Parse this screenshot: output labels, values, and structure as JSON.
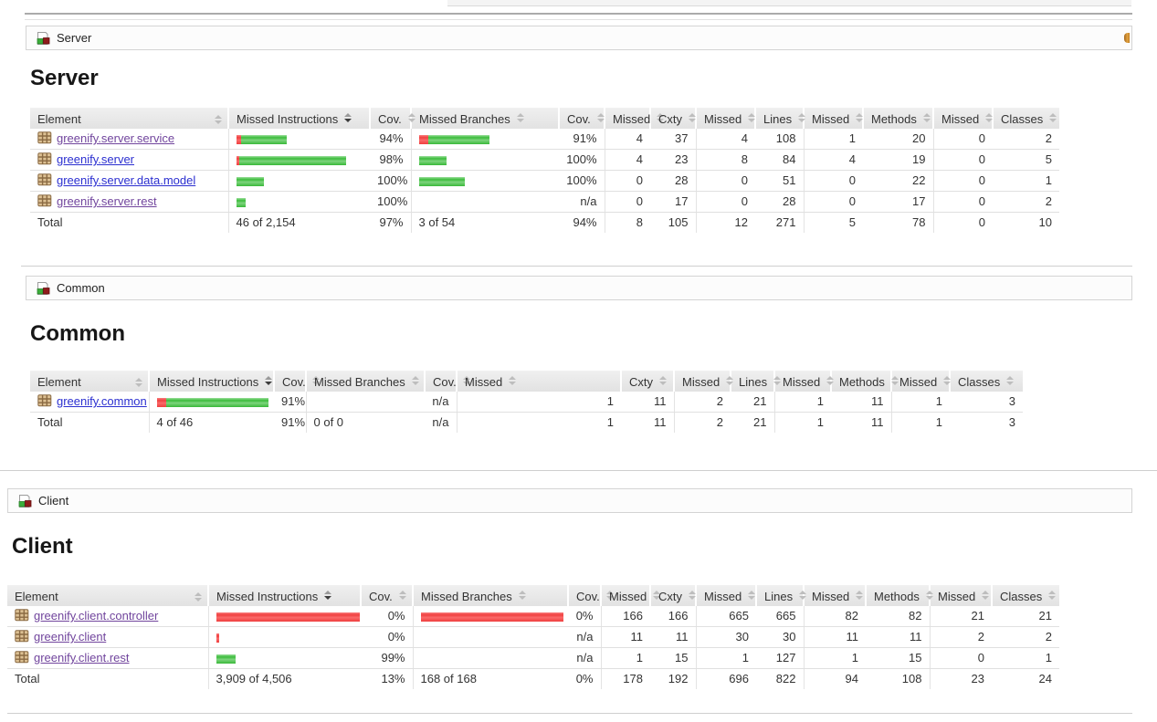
{
  "colors": {
    "link": "#2b2fd0",
    "link_visited": "#71459d",
    "bar_green": "#44c044",
    "bar_red": "#f04545",
    "header_bg": "#e8e8e8",
    "crumb_border": "#d4d4d4",
    "sessions_icon_orange": "#d8963a"
  },
  "columns": [
    {
      "label": "Element",
      "sorted": false
    },
    {
      "label": "Missed Instructions",
      "sorted": true
    },
    {
      "label": "Cov.",
      "sorted": false
    },
    {
      "label": "Missed Branches",
      "sorted": false
    },
    {
      "label": "Cov.",
      "sorted": false
    },
    {
      "label": "Missed",
      "sorted": false
    },
    {
      "label": "Cxty",
      "sorted": false
    },
    {
      "label": "Missed",
      "sorted": false
    },
    {
      "label": "Lines",
      "sorted": false
    },
    {
      "label": "Missed",
      "sorted": false
    },
    {
      "label": "Methods",
      "sorted": false
    },
    {
      "label": "Missed",
      "sorted": false
    },
    {
      "label": "Classes",
      "sorted": false
    }
  ],
  "sections": [
    {
      "breadcrumb": "Server",
      "title": "Server",
      "has_sessions_icon": true,
      "rows": [
        {
          "name": "greenify.server.service",
          "visited": true,
          "instr_bar": {
            "red": 5,
            "green": 50
          },
          "instr_cov": "94%",
          "branch_bar": {
            "red": 10,
            "green": 67
          },
          "branch_cov": "91%",
          "nums": [
            "4",
            "37",
            "4",
            "108",
            "1",
            "20",
            "0",
            "2"
          ]
        },
        {
          "name": "greenify.server",
          "visited": false,
          "instr_bar": {
            "red": 3,
            "green": 117
          },
          "instr_cov": "98%",
          "branch_bar": {
            "red": 0,
            "green": 30
          },
          "branch_cov": "100%",
          "nums": [
            "4",
            "23",
            "8",
            "84",
            "4",
            "19",
            "0",
            "5"
          ]
        },
        {
          "name": "greenify.server.data.model",
          "visited": false,
          "instr_bar": {
            "red": 0,
            "green": 30
          },
          "instr_cov": "100%",
          "branch_bar": {
            "red": 0,
            "green": 50
          },
          "branch_cov": "100%",
          "nums": [
            "0",
            "28",
            "0",
            "51",
            "0",
            "22",
            "0",
            "1"
          ]
        },
        {
          "name": "greenify.server.rest",
          "visited": true,
          "instr_bar": {
            "red": 0,
            "green": 10
          },
          "instr_cov": "100%",
          "branch_bar": null,
          "branch_cov": "n/a",
          "nums": [
            "0",
            "17",
            "0",
            "28",
            "0",
            "17",
            "0",
            "2"
          ]
        }
      ],
      "total": {
        "label": "Total",
        "instr": "46 of 2,154",
        "instr_cov": "97%",
        "branch": "3 of 54",
        "branch_cov": "94%",
        "nums": [
          "8",
          "105",
          "12",
          "271",
          "5",
          "78",
          "0",
          "10"
        ]
      }
    },
    {
      "breadcrumb": "Common",
      "title": "Common",
      "has_sessions_icon": false,
      "rows": [
        {
          "name": "greenify.common",
          "visited": false,
          "instr_bar": {
            "red": 10,
            "green": 112
          },
          "instr_cov": "91%",
          "branch_bar": null,
          "branch_cov": "n/a",
          "nums": [
            "1",
            "11",
            "2",
            "21",
            "1",
            "11",
            "1",
            "3"
          ]
        }
      ],
      "total": {
        "label": "Total",
        "instr": "4 of 46",
        "instr_cov": "91%",
        "branch": "0 of 0",
        "branch_cov": "n/a",
        "nums": [
          "1",
          "11",
          "2",
          "21",
          "1",
          "11",
          "1",
          "3"
        ]
      }
    },
    {
      "breadcrumb": "Client",
      "title": "Client",
      "has_sessions_icon": false,
      "rows": [
        {
          "name": "greenify.client.controller",
          "visited": true,
          "instr_bar": {
            "red": 157,
            "green": 0
          },
          "instr_cov": "0%",
          "branch_bar": {
            "red": 156,
            "green": 0
          },
          "branch_cov": "0%",
          "nums": [
            "166",
            "166",
            "665",
            "665",
            "82",
            "82",
            "21",
            "21"
          ]
        },
        {
          "name": "greenify.client",
          "visited": true,
          "instr_bar": {
            "red": 3,
            "green": 0
          },
          "instr_cov": "0%",
          "branch_bar": null,
          "branch_cov": "n/a",
          "nums": [
            "11",
            "11",
            "30",
            "30",
            "11",
            "11",
            "2",
            "2"
          ]
        },
        {
          "name": "greenify.client.rest",
          "visited": true,
          "instr_bar": {
            "red": 0,
            "green": 21
          },
          "instr_cov": "99%",
          "branch_bar": null,
          "branch_cov": "n/a",
          "nums": [
            "1",
            "15",
            "1",
            "127",
            "1",
            "15",
            "0",
            "1"
          ]
        }
      ],
      "total": {
        "label": "Total",
        "instr": "3,909 of 4,506",
        "instr_cov": "13%",
        "branch": "168 of 168",
        "branch_cov": "0%",
        "nums": [
          "178",
          "192",
          "696",
          "822",
          "94",
          "108",
          "23",
          "24"
        ]
      }
    }
  ]
}
